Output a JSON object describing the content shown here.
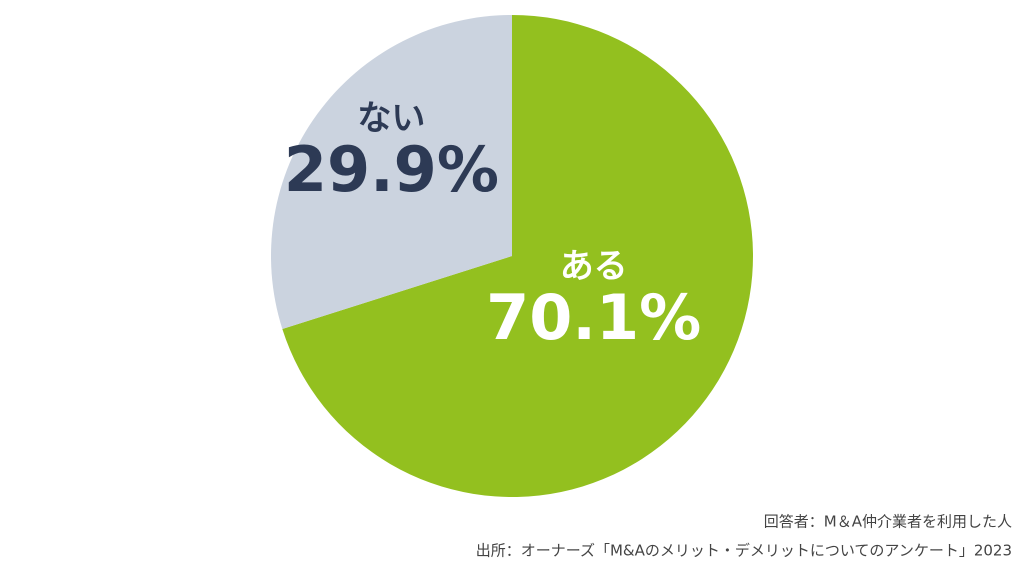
{
  "chart_data": {
    "type": "pie",
    "categories": [
      "ある",
      "ない"
    ],
    "values": [
      70.1,
      29.9
    ],
    "value_labels": [
      "70.1%",
      "29.9%"
    ],
    "colors": [
      "#93c01f",
      "#cbd3df"
    ],
    "label_colors": [
      "#ffffff",
      "#2d3a55"
    ],
    "notes": [
      "回答者：M＆A仲介業者を利用した人",
      "出所：オーナーズ「M&Aのメリット・デメリットについてのアンケート」2023"
    ]
  }
}
